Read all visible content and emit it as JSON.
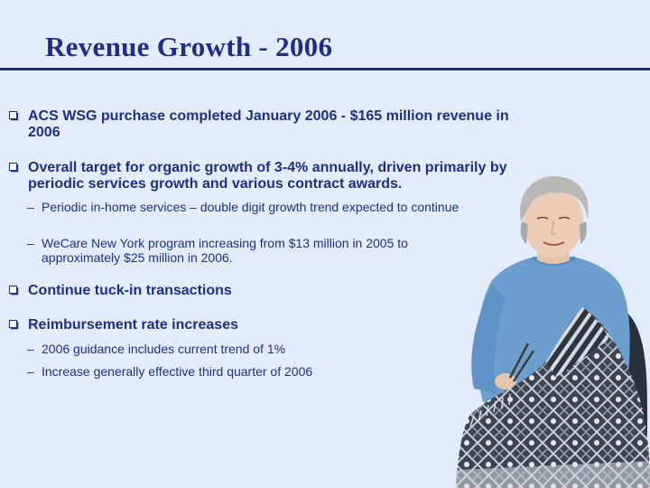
{
  "slide": {
    "title": "Revenue Growth - 2006"
  },
  "bullets": [
    {
      "text": "ACS WSG purchase completed January 2006 - $165 million revenue in 2006",
      "subs": []
    },
    {
      "text": "Overall target for organic growth of 3-4% annually, driven primarily by periodic services growth and various contract awards.",
      "subs": [
        "Periodic in-home services – double digit growth trend expected to continue",
        "WeCare New York program increasing from $13 million in 2005 to approximately $25 million in 2006."
      ]
    },
    {
      "text": "Continue tuck-in transactions",
      "subs": []
    },
    {
      "text": "Reimbursement rate increases",
      "subs": [
        "2006 guidance includes current trend of 1%",
        "Increase generally effective third quarter of 2006"
      ]
    }
  ],
  "dash_glyph": "–",
  "colors": {
    "background": "#e2ecfa",
    "text": "#1f2f86",
    "sweater": "#6c9ed0",
    "blanket": "#3e4552"
  }
}
